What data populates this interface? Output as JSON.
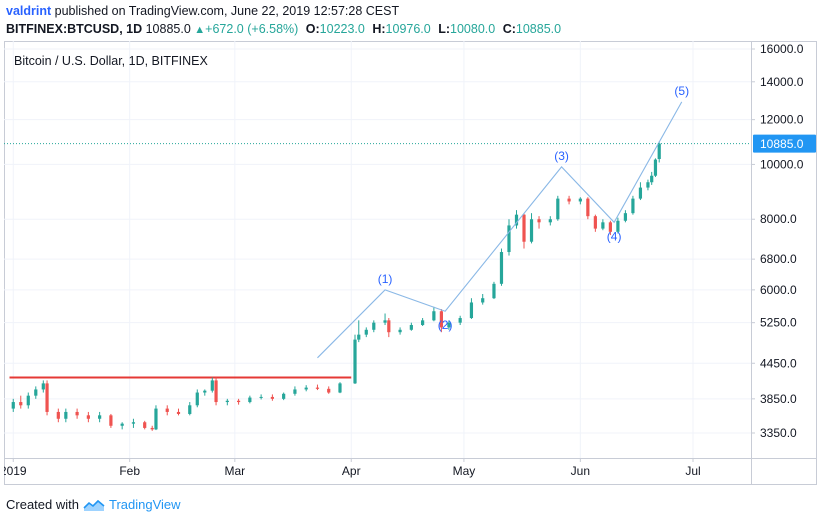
{
  "header": {
    "author": "valdrint",
    "published_text": "published on TradingView.com, June 22, 2019 12:57:28 CEST",
    "symbol": "BITFINEX:BTCUSD, 1D",
    "last": "10885.0",
    "change": "+672.0 (+6.58%)",
    "o_label": "O:",
    "o_val": "10223.0",
    "h_label": "H:",
    "h_val": "10976.0",
    "l_label": "L:",
    "l_val": "10080.0",
    "c_label": "C:",
    "c_val": "10885.0"
  },
  "chart_title": "Bitcoin / U.S. Dollar, 1D, BITFINEX",
  "footer": {
    "created_with": "Created with",
    "brand": "TradingView"
  },
  "colors": {
    "up": "#26a69a",
    "down": "#ef5350",
    "wave": "#8ab8e6",
    "resistance": "#e53935",
    "last_price_bg": "#2196f3"
  },
  "chart_data": {
    "type": "candlestick",
    "title": "Bitcoin / U.S. Dollar, 1D, BITFINEX",
    "y_scale": "log",
    "ylim": [
      3000,
      16500
    ],
    "y_ticks": [
      16000,
      14000,
      12000,
      10000,
      8000,
      6800,
      6000,
      5250,
      4450,
      3850,
      3350
    ],
    "y_tick_labels": [
      "16000.0",
      "14000.0",
      "12000.0",
      "10000.0",
      "8000.0",
      "6800.0",
      "6000.0",
      "5250.0",
      "4450.0",
      "3850.0",
      "3350.0"
    ],
    "x_ticks": [
      "2019-01-01",
      "2019-02-01",
      "2019-03-01",
      "2019-04-01",
      "2019-05-01",
      "2019-06-01",
      "2019-07-01"
    ],
    "x_tick_labels": [
      "2019",
      "Feb",
      "Mar",
      "Apr",
      "May",
      "Jun",
      "Jul"
    ],
    "last_price": 10885.0,
    "last_price_label": "10885.0",
    "resistance_level": 4200,
    "resistance_from": "2018-12-31",
    "resistance_to": "2019-04-01",
    "wave_labels": [
      "(1)",
      "(2)",
      "(3)",
      "(4)",
      "(5)"
    ],
    "wave_path": [
      {
        "date": "2019-03-23",
        "price": 4550,
        "label": ""
      },
      {
        "date": "2019-04-10",
        "price": 6000,
        "label": "(1)"
      },
      {
        "date": "2019-04-26",
        "price": 5500,
        "label": "(2)"
      },
      {
        "date": "2019-05-27",
        "price": 9900,
        "label": "(3)"
      },
      {
        "date": "2019-06-10",
        "price": 7900,
        "label": "(4)"
      },
      {
        "date": "2019-06-28",
        "price": 12900,
        "label": "(5)"
      }
    ],
    "candles": [
      {
        "date": "2019-01-01",
        "open": 3700,
        "high": 3850,
        "low": 3650,
        "close": 3800
      },
      {
        "date": "2019-01-03",
        "open": 3800,
        "high": 3900,
        "low": 3700,
        "close": 3750
      },
      {
        "date": "2019-01-05",
        "open": 3750,
        "high": 3950,
        "low": 3700,
        "close": 3900
      },
      {
        "date": "2019-01-07",
        "open": 3900,
        "high": 4050,
        "low": 3850,
        "close": 4000
      },
      {
        "date": "2019-01-09",
        "open": 4000,
        "high": 4150,
        "low": 3950,
        "close": 4100
      },
      {
        "date": "2019-01-10",
        "open": 4100,
        "high": 4150,
        "low": 3600,
        "close": 3650
      },
      {
        "date": "2019-01-13",
        "open": 3650,
        "high": 3700,
        "low": 3500,
        "close": 3550
      },
      {
        "date": "2019-01-15",
        "open": 3550,
        "high": 3700,
        "low": 3500,
        "close": 3650
      },
      {
        "date": "2019-01-18",
        "open": 3650,
        "high": 3700,
        "low": 3550,
        "close": 3600
      },
      {
        "date": "2019-01-21",
        "open": 3600,
        "high": 3650,
        "low": 3500,
        "close": 3550
      },
      {
        "date": "2019-01-24",
        "open": 3550,
        "high": 3650,
        "low": 3500,
        "close": 3600
      },
      {
        "date": "2019-01-27",
        "open": 3600,
        "high": 3620,
        "low": 3420,
        "close": 3450
      },
      {
        "date": "2019-01-30",
        "open": 3450,
        "high": 3500,
        "low": 3400,
        "close": 3480
      },
      {
        "date": "2019-02-02",
        "open": 3480,
        "high": 3550,
        "low": 3420,
        "close": 3500
      },
      {
        "date": "2019-02-05",
        "open": 3500,
        "high": 3520,
        "low": 3400,
        "close": 3420
      },
      {
        "date": "2019-02-07",
        "open": 3420,
        "high": 3450,
        "low": 3380,
        "close": 3400
      },
      {
        "date": "2019-02-08",
        "open": 3400,
        "high": 3750,
        "low": 3390,
        "close": 3700
      },
      {
        "date": "2019-02-11",
        "open": 3700,
        "high": 3750,
        "low": 3600,
        "close": 3650
      },
      {
        "date": "2019-02-14",
        "open": 3650,
        "high": 3700,
        "low": 3600,
        "close": 3620
      },
      {
        "date": "2019-02-17",
        "open": 3620,
        "high": 3800,
        "low": 3600,
        "close": 3750
      },
      {
        "date": "2019-02-19",
        "open": 3750,
        "high": 4000,
        "low": 3720,
        "close": 3950
      },
      {
        "date": "2019-02-21",
        "open": 3950,
        "high": 4000,
        "low": 3900,
        "close": 3980
      },
      {
        "date": "2019-02-23",
        "open": 3980,
        "high": 4200,
        "low": 3950,
        "close": 4150
      },
      {
        "date": "2019-02-24",
        "open": 4150,
        "high": 4200,
        "low": 3750,
        "close": 3800
      },
      {
        "date": "2019-02-27",
        "open": 3800,
        "high": 3850,
        "low": 3750,
        "close": 3820
      },
      {
        "date": "2019-03-02",
        "open": 3820,
        "high": 3850,
        "low": 3760,
        "close": 3800
      },
      {
        "date": "2019-03-05",
        "open": 3800,
        "high": 3900,
        "low": 3780,
        "close": 3870
      },
      {
        "date": "2019-03-08",
        "open": 3870,
        "high": 3920,
        "low": 3840,
        "close": 3880
      },
      {
        "date": "2019-03-11",
        "open": 3880,
        "high": 3920,
        "low": 3820,
        "close": 3850
      },
      {
        "date": "2019-03-14",
        "open": 3850,
        "high": 3950,
        "low": 3830,
        "close": 3930
      },
      {
        "date": "2019-03-17",
        "open": 3930,
        "high": 4050,
        "low": 3900,
        "close": 4000
      },
      {
        "date": "2019-03-20",
        "open": 4000,
        "high": 4070,
        "low": 3970,
        "close": 4030
      },
      {
        "date": "2019-03-23",
        "open": 4030,
        "high": 4080,
        "low": 3990,
        "close": 4010
      },
      {
        "date": "2019-03-26",
        "open": 4010,
        "high": 4050,
        "low": 3930,
        "close": 3950
      },
      {
        "date": "2019-03-29",
        "open": 3950,
        "high": 4120,
        "low": 3940,
        "close": 4100
      },
      {
        "date": "2019-04-02",
        "open": 4100,
        "high": 5000,
        "low": 4090,
        "close": 4900
      },
      {
        "date": "2019-04-03",
        "open": 4900,
        "high": 5300,
        "low": 4850,
        "close": 5000
      },
      {
        "date": "2019-04-05",
        "open": 5000,
        "high": 5150,
        "low": 4950,
        "close": 5100
      },
      {
        "date": "2019-04-07",
        "open": 5100,
        "high": 5300,
        "low": 5050,
        "close": 5250
      },
      {
        "date": "2019-04-10",
        "open": 5250,
        "high": 5450,
        "low": 5200,
        "close": 5300
      },
      {
        "date": "2019-04-11",
        "open": 5300,
        "high": 5350,
        "low": 4950,
        "close": 5050
      },
      {
        "date": "2019-04-14",
        "open": 5050,
        "high": 5150,
        "low": 5000,
        "close": 5100
      },
      {
        "date": "2019-04-17",
        "open": 5100,
        "high": 5250,
        "low": 5080,
        "close": 5200
      },
      {
        "date": "2019-04-20",
        "open": 5200,
        "high": 5350,
        "low": 5180,
        "close": 5300
      },
      {
        "date": "2019-04-23",
        "open": 5300,
        "high": 5600,
        "low": 5280,
        "close": 5500
      },
      {
        "date": "2019-04-25",
        "open": 5500,
        "high": 5550,
        "low": 5050,
        "close": 5150
      },
      {
        "date": "2019-04-27",
        "open": 5150,
        "high": 5300,
        "low": 5100,
        "close": 5250
      },
      {
        "date": "2019-04-30",
        "open": 5250,
        "high": 5400,
        "low": 5200,
        "close": 5350
      },
      {
        "date": "2019-05-03",
        "open": 5350,
        "high": 5800,
        "low": 5330,
        "close": 5700
      },
      {
        "date": "2019-05-06",
        "open": 5700,
        "high": 5900,
        "low": 5650,
        "close": 5800
      },
      {
        "date": "2019-05-09",
        "open": 5800,
        "high": 6200,
        "low": 5780,
        "close": 6150
      },
      {
        "date": "2019-05-11",
        "open": 6150,
        "high": 7100,
        "low": 6100,
        "close": 7000
      },
      {
        "date": "2019-05-13",
        "open": 7000,
        "high": 8000,
        "low": 6900,
        "close": 7800
      },
      {
        "date": "2019-05-15",
        "open": 7800,
        "high": 8300,
        "low": 7700,
        "close": 8150
      },
      {
        "date": "2019-05-17",
        "open": 8150,
        "high": 8200,
        "low": 7100,
        "close": 7300
      },
      {
        "date": "2019-05-19",
        "open": 7300,
        "high": 8200,
        "low": 7250,
        "close": 8000
      },
      {
        "date": "2019-05-21",
        "open": 8000,
        "high": 8100,
        "low": 7700,
        "close": 7900
      },
      {
        "date": "2019-05-24",
        "open": 7900,
        "high": 8100,
        "low": 7800,
        "close": 8000
      },
      {
        "date": "2019-05-26",
        "open": 8000,
        "high": 8800,
        "low": 7950,
        "close": 8700
      },
      {
        "date": "2019-05-29",
        "open": 8700,
        "high": 8800,
        "low": 8500,
        "close": 8600
      },
      {
        "date": "2019-06-01",
        "open": 8600,
        "high": 8750,
        "low": 8500,
        "close": 8700
      },
      {
        "date": "2019-06-03",
        "open": 8700,
        "high": 8750,
        "low": 8000,
        "close": 8100
      },
      {
        "date": "2019-06-05",
        "open": 8100,
        "high": 8150,
        "low": 7600,
        "close": 7700
      },
      {
        "date": "2019-06-07",
        "open": 7700,
        "high": 8000,
        "low": 7650,
        "close": 7900
      },
      {
        "date": "2019-06-09",
        "open": 7900,
        "high": 7950,
        "low": 7500,
        "close": 7600
      },
      {
        "date": "2019-06-11",
        "open": 7600,
        "high": 8050,
        "low": 7550,
        "close": 7950
      },
      {
        "date": "2019-06-13",
        "open": 7950,
        "high": 8300,
        "low": 7900,
        "close": 8200
      },
      {
        "date": "2019-06-15",
        "open": 8200,
        "high": 8800,
        "low": 8150,
        "close": 8700
      },
      {
        "date": "2019-06-17",
        "open": 8700,
        "high": 9300,
        "low": 8650,
        "close": 9100
      },
      {
        "date": "2019-06-19",
        "open": 9100,
        "high": 9400,
        "low": 9000,
        "close": 9300
      },
      {
        "date": "2019-06-20",
        "open": 9300,
        "high": 9700,
        "low": 9200,
        "close": 9550
      },
      {
        "date": "2019-06-21",
        "open": 9550,
        "high": 10250,
        "low": 9500,
        "close": 10200
      },
      {
        "date": "2019-06-22",
        "open": 10223,
        "high": 10976,
        "low": 10080,
        "close": 10885
      }
    ]
  }
}
